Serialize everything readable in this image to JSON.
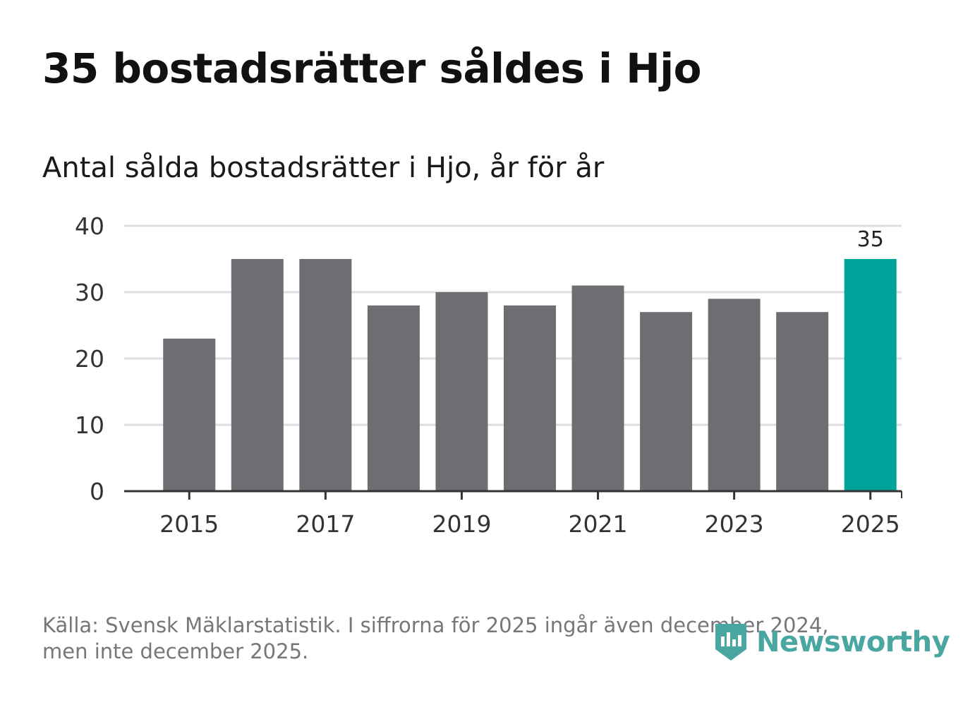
{
  "header": {
    "title": "35 bostadsrätter såldes i Hjo",
    "subtitle": "Antal sålda bostadsrätter i Hjo, år för år"
  },
  "chart_data": {
    "type": "bar",
    "title": "Antal sålda bostadsrätter i Hjo, år för år",
    "xlabel": "",
    "ylabel": "",
    "categories": [
      "2015",
      "2016",
      "2017",
      "2018",
      "2019",
      "2020",
      "2021",
      "2022",
      "2023",
      "2024",
      "2025"
    ],
    "values": [
      23,
      35,
      35,
      28,
      30,
      28,
      31,
      27,
      29,
      27,
      35
    ],
    "ylim": [
      0,
      40
    ],
    "yticks": [
      0,
      10,
      20,
      30,
      40
    ],
    "xtick_labels": [
      "2015",
      "2017",
      "2019",
      "2021",
      "2023",
      "2025"
    ],
    "grid": true,
    "highlight_index": 10,
    "data_labels": [
      {
        "index": 10,
        "text": "35"
      }
    ],
    "colors": {
      "bar": "#6e6d73",
      "highlight": "#00a39a",
      "grid": "#dddddd",
      "axis": "#333333",
      "text": "#333333"
    }
  },
  "footer": {
    "source_line1": "Källa: Svensk Mäklarstatistik. I siffrorna för 2025 ingår även december 2024,",
    "source_line2": "men inte december 2025."
  },
  "brand": {
    "name": "Newsworthy",
    "icon": "newsworthy-logo-icon",
    "color": "#4aa6a0"
  }
}
